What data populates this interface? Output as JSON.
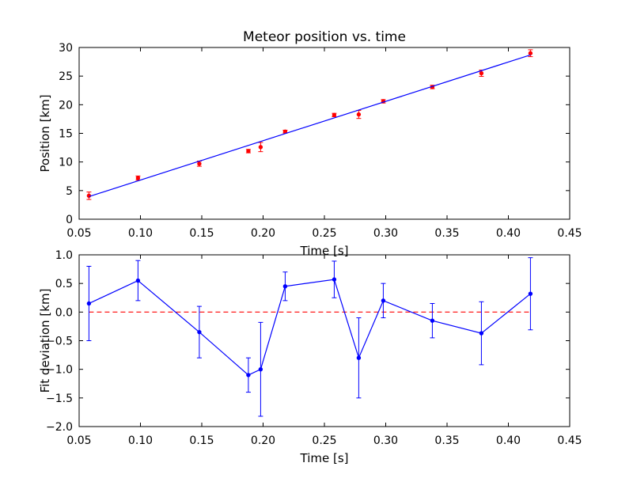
{
  "chart_data": [
    {
      "type": "scatter",
      "title": "Meteor position vs. time",
      "xlabel": "Time [s]",
      "ylabel": "Position [km]",
      "xlim": [
        0.05,
        0.45
      ],
      "ylim": [
        0,
        30
      ],
      "xticks": [
        "0.05",
        "0.10",
        "0.15",
        "0.20",
        "0.25",
        "0.30",
        "0.35",
        "0.40",
        "0.45"
      ],
      "yticks": [
        "0",
        "5",
        "10",
        "15",
        "20",
        "25",
        "30"
      ],
      "grid": false,
      "colors": {
        "points": "#ff0000",
        "fit": "#0000ff"
      },
      "series": [
        {
          "kind": "points_with_errorbars",
          "x": [
            0.058,
            0.098,
            0.148,
            0.188,
            0.198,
            0.218,
            0.258,
            0.278,
            0.298,
            0.338,
            0.378,
            0.418
          ],
          "y": [
            4.1,
            7.2,
            9.7,
            11.9,
            12.6,
            15.3,
            18.2,
            18.3,
            20.6,
            23.1,
            25.5,
            29.0
          ],
          "err": [
            0.65,
            0.35,
            0.45,
            0.3,
            0.8,
            0.25,
            0.3,
            0.7,
            0.3,
            0.3,
            0.55,
            0.6
          ]
        },
        {
          "kind": "fit_line",
          "x": [
            0.058,
            0.418
          ],
          "y": [
            3.95,
            28.7
          ]
        }
      ]
    },
    {
      "type": "line",
      "title": "",
      "xlabel": "Time [s]",
      "ylabel": "Fit deviation [km]",
      "xlim": [
        0.05,
        0.45
      ],
      "ylim": [
        -2.0,
        1.0
      ],
      "xticks": [
        "0.05",
        "0.10",
        "0.15",
        "0.20",
        "0.25",
        "0.30",
        "0.35",
        "0.40",
        "0.45"
      ],
      "yticks": [
        "−2.0",
        "−1.5",
        "−1.0",
        "−0.5",
        "0.0",
        "0.5",
        "1.0"
      ],
      "grid": false,
      "colors": {
        "series": "#0000ff",
        "reference": "#ff0000"
      },
      "reference_line": {
        "y": 0.0,
        "style": "dashed"
      },
      "series": [
        {
          "kind": "line_with_errorbars",
          "x": [
            0.058,
            0.098,
            0.148,
            0.188,
            0.198,
            0.218,
            0.258,
            0.278,
            0.298,
            0.338,
            0.378,
            0.418
          ],
          "y": [
            0.15,
            0.55,
            -0.35,
            -1.1,
            -1.0,
            0.45,
            0.57,
            -0.8,
            0.2,
            -0.15,
            -0.37,
            0.32
          ],
          "err": [
            0.65,
            0.35,
            0.45,
            0.3,
            0.82,
            0.25,
            0.32,
            0.7,
            0.3,
            0.3,
            0.55,
            0.63
          ]
        }
      ]
    }
  ]
}
